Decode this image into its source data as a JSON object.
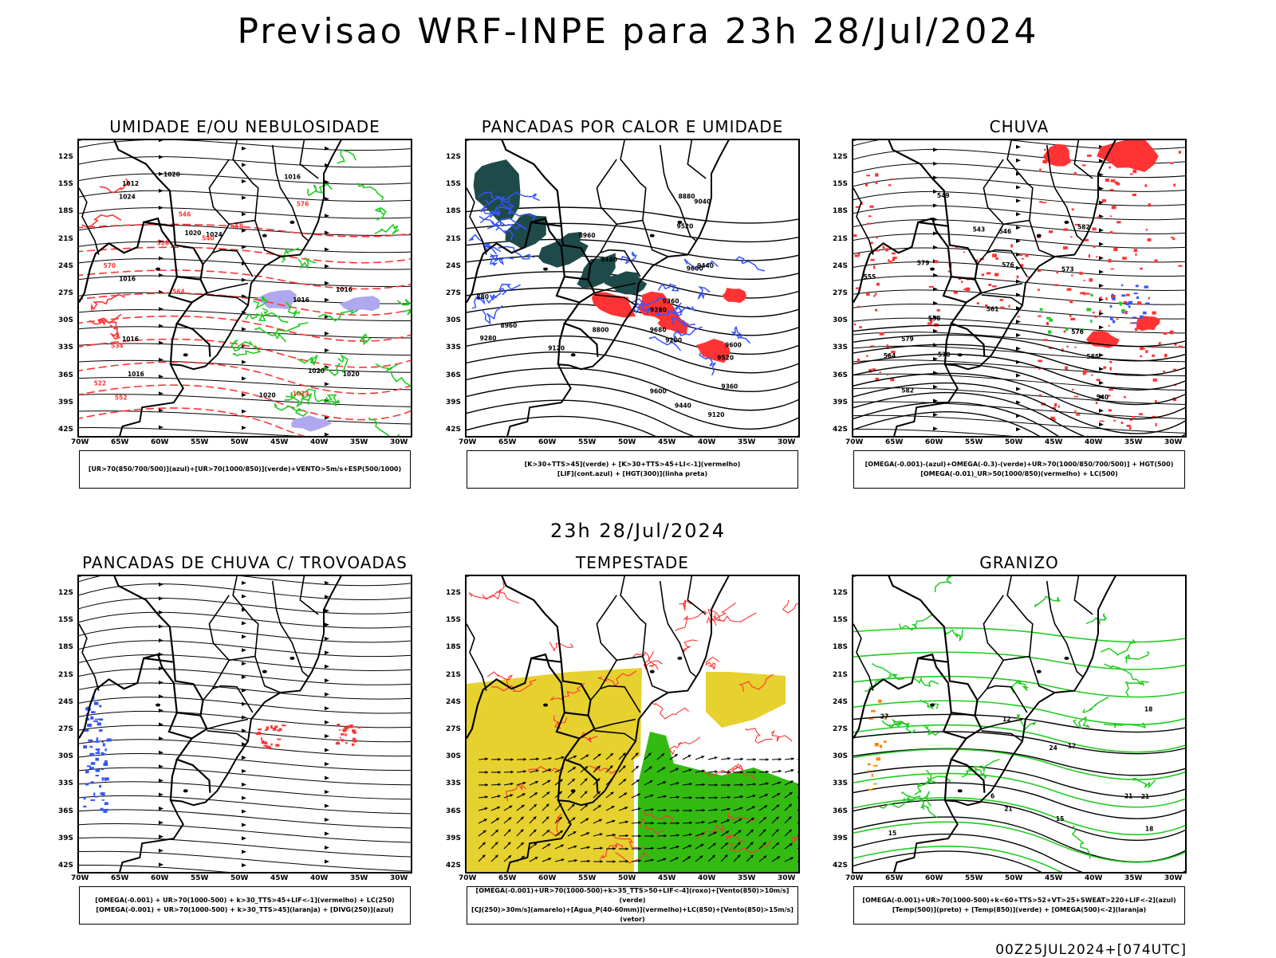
{
  "title": "Previsao WRF-INPE  para 23h 28/Jul/2024",
  "mid_title": "23h 28/Jul/2024",
  "footer": "00Z25JUL2024+[074UTC]",
  "lat_ticks": [
    "12S",
    "15S",
    "18S",
    "21S",
    "24S",
    "27S",
    "30S",
    "33S",
    "36S",
    "39S",
    "42S"
  ],
  "lon_ticks": [
    "70W",
    "65W",
    "60W",
    "55W",
    "50W",
    "45W",
    "40W",
    "35W",
    "30W"
  ],
  "colors": {
    "red_overlay": "#ff3333",
    "green_contour": "#22cc22",
    "blue_contour": "#3355ff",
    "purple_overlay": "#b0a8ee",
    "dark_teal": "#1f4a4a",
    "yellow_overlay": "#e6d12e",
    "green_fill": "#33bb11",
    "orange": "#ff8800"
  },
  "panels": [
    {
      "id": "umidade",
      "title": "UMIDADE E/OU NEBULOSIDADE",
      "legend": [
        "[UR>70(850/700/500)](azul)+[UR>70(1000/850)](verde)+VENTO>5m/s+ESP(500/1000)"
      ],
      "labels": [
        "1016",
        "1016",
        "1016",
        "1020",
        "1024",
        "1020",
        "1016",
        "1016",
        "1020",
        "1020",
        "1024",
        "1016",
        "1012",
        "1020",
        "1024",
        "570",
        "576",
        "564",
        "558",
        "552",
        "546",
        "540",
        "534",
        "528",
        "522"
      ]
    },
    {
      "id": "pancadas-calor",
      "title": "PANCADAS POR CALOR E UMIDADE",
      "legend": [
        "[K>30+TTS>45](verde)  +  [K>30+TTS>45+LI<-1](vermelho)",
        "[LIF](cont.azul)  +  [HGT(300)](linha preta)"
      ],
      "labels": [
        "9680",
        "9600",
        "9600",
        "9520",
        "9600",
        "9520",
        "9440",
        "9440",
        "9360",
        "9440",
        "9360",
        "9280",
        "9280",
        "9200",
        "9120",
        "9120",
        "9040",
        "8960",
        "8880",
        "8960",
        "8800",
        "880"
      ]
    },
    {
      "id": "chuva",
      "title": "CHUVA",
      "legend": [
        "[OMEGA(-0.001)-(azul)+OMEGA(-0.3)-(verde)+UR>70(1000/850/700/500)] + HGT(500)",
        "[OMEGA(-0.01)_UR>50(1000/850)(vermelho) + LC(500)"
      ],
      "labels": [
        "585",
        "582",
        "579",
        "576",
        "573",
        "570",
        "564",
        "561",
        "558",
        "555",
        "549",
        "543",
        "540",
        "546",
        "582",
        "579",
        "576"
      ]
    },
    {
      "id": "pancadas-trovoadas",
      "title": "PANCADAS DE CHUVA C/ TROVOADAS",
      "legend": [
        "[OMEGA(-0.001) + UR>70(1000-500) + k>30_TTS>45+LIF<-1](vermelho) + LC(250)",
        "[OMEGA(-0.001) + UR>70(1000-500) + k>30_TTS>45](laranja) + [DIVG(250)](azul)"
      ],
      "labels": []
    },
    {
      "id": "tempestade",
      "title": "TEMPESTADE",
      "legend": [
        "[OMEGA(-0.001)+UR>70(1000-500)+k>35_TTS>50+LIF<-4](roxo)+[Vento(850)>10m/s](verde)",
        "[CJ(250)>30m/s](amarelo)+[Agua_P(40-60mm)](vermelho)+LC(850)+[Vento(850)>15m/s](vetor)"
      ],
      "labels": []
    },
    {
      "id": "granizo",
      "title": "GRANIZO",
      "legend": [
        "[OMEGA(-0.001)+UR>70(1000-500)+k<60+TTS>52+VT>25+SWEAT>220+LIF<-2](azul)",
        "[Temp(500)](preto) + [Temp(850)](verde) + [OMEGA(500)<-2](laranja)"
      ],
      "labels": [
        "12",
        "15",
        "15",
        "18",
        "21",
        "24",
        "27",
        "21",
        "18",
        "21",
        "12",
        "6"
      ]
    }
  ]
}
